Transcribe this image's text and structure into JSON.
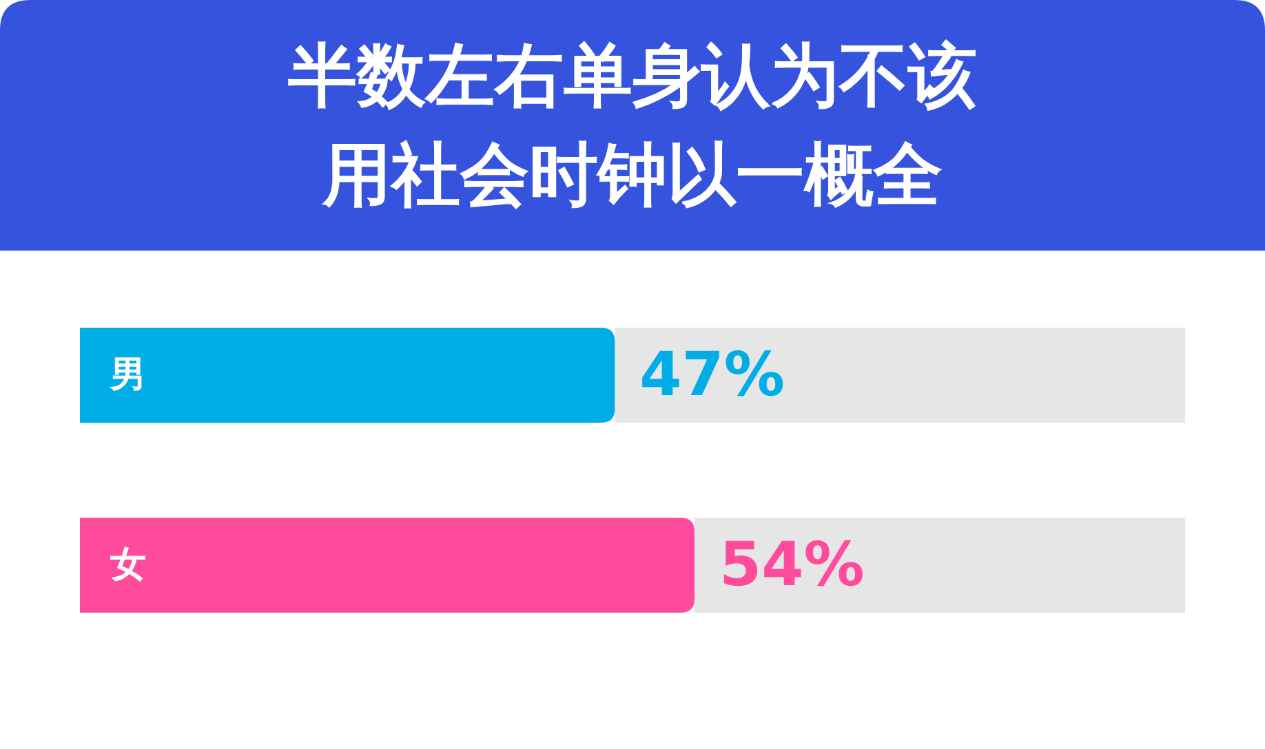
{
  "chart_data": {
    "type": "bar",
    "orientation": "horizontal",
    "title": "半数左右单身认为不该用社会时钟以一概全",
    "categories": [
      "男",
      "女"
    ],
    "values": [
      47,
      54
    ],
    "value_labels": [
      "47%",
      "54%"
    ],
    "colors": [
      "#00ade6",
      "#ff4b9b"
    ]
  }
}
